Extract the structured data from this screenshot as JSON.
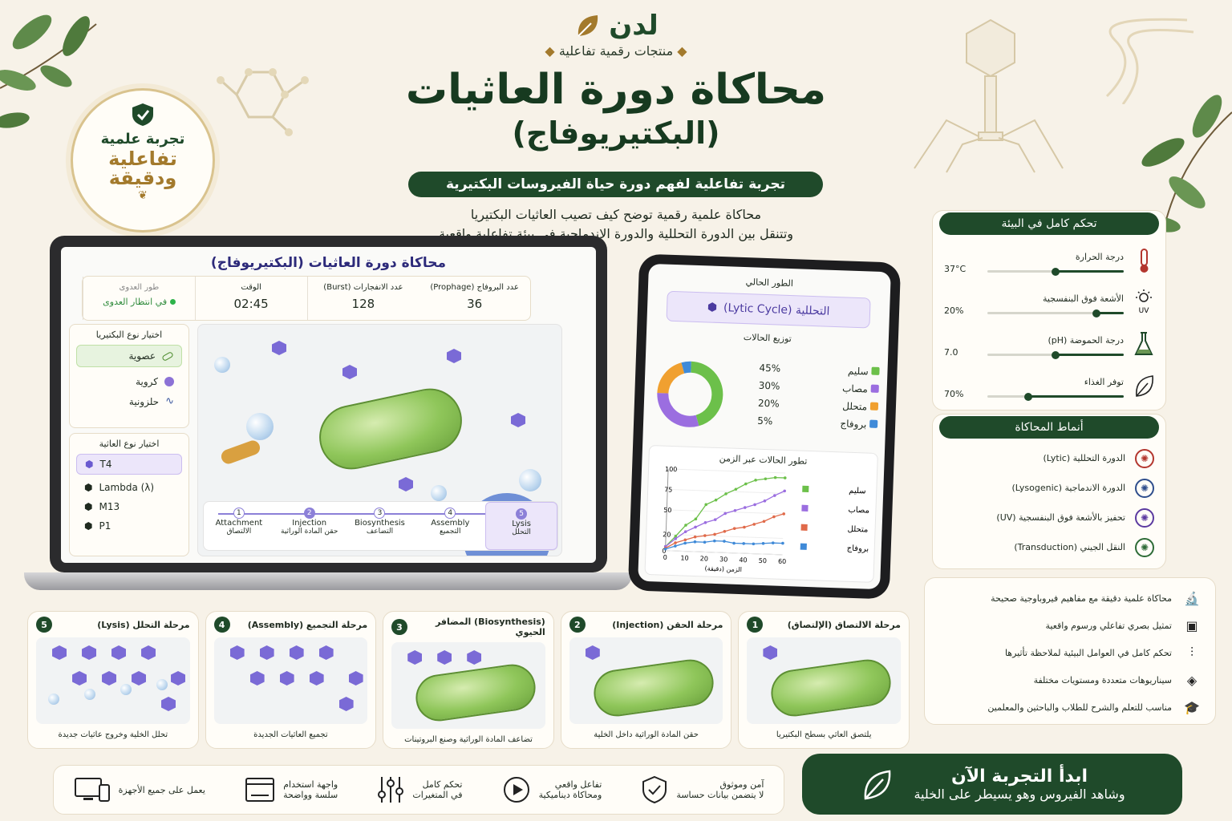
{
  "brand": {
    "name": "لدن",
    "tagline": "منتجات رقمية تفاعلية"
  },
  "hero": {
    "title_line1": "محاكاة دورة العاثيات",
    "title_line2": "(البكتيريوفاج)",
    "subtitle": "تجربة تفاعلية لفهم دورة حياة الفيروسات البكتيرية",
    "desc_line1": "محاكاة علمية رقمية توضح كيف تصيب العاثيات البكتيريا",
    "desc_line2": "وتتنقل بين الدورة التحللية والدورة الاندماجية في بيئة تفاعلية واقعية"
  },
  "badge": {
    "line1": "تجربة علمية",
    "line2": "تفاعلية",
    "line3": "ودقيقة"
  },
  "laptop": {
    "title": "محاكاة دورة العاثيات (البكتيريوفاج)",
    "stats": [
      {
        "label": "طور العدوى",
        "value": "في انتظار العدوى"
      },
      {
        "label": "الوقت",
        "value": "02:45"
      },
      {
        "label": "عدد الانفجارات (Burst)",
        "value": "128"
      },
      {
        "label": "عدد البروفاج (Prophage)",
        "value": "36"
      }
    ],
    "bacteria_title": "اختيار نوع البكتيريا",
    "bacteria": [
      "عصوية",
      "كروية",
      "حلزونية"
    ],
    "phage_title": "اختيار نوع العاثية",
    "phages": [
      "T4",
      "Lambda (λ)",
      "M13",
      "P1"
    ],
    "steps": [
      {
        "num": "1",
        "en": "Attachment",
        "ar": "الالتصاق"
      },
      {
        "num": "2",
        "en": "Injection",
        "ar": "حقن المادة الوراثية"
      },
      {
        "num": "3",
        "en": "Biosynthesis",
        "ar": "التضاعف"
      },
      {
        "num": "4",
        "en": "Assembly",
        "ar": "التجميع"
      },
      {
        "num": "5",
        "en": "Lysis",
        "ar": "التحلل"
      }
    ]
  },
  "tablet": {
    "phase_label": "الطور الحالي",
    "phase_value": "التحللية (Lytic Cycle)",
    "dist_title": "توزيع الحالات",
    "dist": [
      {
        "name": "سليم",
        "pct": "45%",
        "value": 45,
        "color": "#6cc04a"
      },
      {
        "name": "مصاب",
        "pct": "30%",
        "value": 30,
        "color": "#9b6ee0"
      },
      {
        "name": "متحلل",
        "pct": "20%",
        "value": 20,
        "color": "#f0a030"
      },
      {
        "name": "بروفاج",
        "pct": "5%",
        "value": 5,
        "color": "#3f8ad8"
      }
    ],
    "line_title": "تطور الحالات عبر الزمن",
    "xlabel": "الزمن (دقيقة)"
  },
  "chart_data": {
    "type": "line",
    "title": "تطور الحالات عبر الزمن",
    "xlabel": "الزمن (دقيقة)",
    "ylabel": "",
    "x": [
      0,
      5,
      10,
      15,
      20,
      25,
      30,
      35,
      40,
      45,
      50,
      55,
      60
    ],
    "x_ticks": [
      "0",
      "10",
      "20",
      "30",
      "40",
      "50",
      "60"
    ],
    "y_ticks": [
      "0",
      "20",
      "50",
      "75",
      "100"
    ],
    "ylim": [
      0,
      100
    ],
    "series": [
      {
        "name": "سليم",
        "color": "#6cc04a",
        "values": [
          5,
          18,
          32,
          40,
          58,
          64,
          72,
          78,
          85,
          90,
          92,
          94,
          94
        ]
      },
      {
        "name": "مصاب",
        "color": "#9b6ee0",
        "values": [
          5,
          15,
          24,
          30,
          36,
          40,
          48,
          52,
          56,
          60,
          65,
          72,
          78
        ]
      },
      {
        "name": "متحلل",
        "color": "#e06a4a",
        "values": [
          3,
          10,
          14,
          18,
          20,
          22,
          26,
          30,
          32,
          36,
          40,
          46,
          50
        ]
      },
      {
        "name": "بروفاج",
        "color": "#3f8ad8",
        "values": [
          2,
          6,
          10,
          12,
          12,
          14,
          14,
          12,
          12,
          12,
          13,
          14,
          14
        ]
      }
    ],
    "legend": "right"
  },
  "env": {
    "title": "تحكم كامل في البيئة",
    "controls": [
      {
        "label": "درجة الحرارة",
        "value": "37°C",
        "level": 0.5,
        "icon": "thermometer-icon"
      },
      {
        "label": "الأشعة فوق البنفسجية",
        "value": "20%",
        "level": 0.2,
        "icon": "uv-sun-icon"
      },
      {
        "label": "درجة الحموضة (pH)",
        "value": "7.0",
        "level": 0.5,
        "icon": "flask-icon"
      },
      {
        "label": "توفر الغذاء",
        "value": "70%",
        "level": 0.7,
        "icon": "leaf-icon"
      }
    ]
  },
  "modes": {
    "title": "أنماط المحاكاة",
    "items": [
      {
        "label": "الدورة التحللية (Lytic)",
        "color": "#b3362e"
      },
      {
        "label": "الدورة الاندماجية (Lysogenic)",
        "color": "#2e4d8c"
      },
      {
        "label": "تحفيز بالأشعة فوق البنفسجية (UV)",
        "color": "#5b3aa0"
      },
      {
        "label": "النقل الجيني (Transduction)",
        "color": "#2d6b36"
      }
    ]
  },
  "features": [
    "محاكاة علمية دقيقة مع مفاهيم فيروباوجية صحيحة",
    "تمثيل بصري تفاعلي ورسوم واقعية",
    "تحكم كامل في العوامل البيئية لملاحظة تأثيرها",
    "سيناريوهات متعددة ومستويات مختلفة",
    "مناسب للتعلم والشرح للطلاب والباحثين والمعلمين"
  ],
  "stages": [
    {
      "num": "1",
      "title": "مرحلة الالتصاق (الإلتصاق)",
      "caption": "يلتصق العاثي بسطح البكتيريا"
    },
    {
      "num": "2",
      "title": "مرحلة الحقن (Injection)",
      "caption": "حقن المادة الوراثية داخل الخلية"
    },
    {
      "num": "3",
      "title": "(Biosynthesis) المضافر الحيوي",
      "caption": "تضاعف المادة الوراثية وصنع البروتينات"
    },
    {
      "num": "4",
      "title": "مرحلة التجميع (Assembly)",
      "caption": "تجميع العاثيات الجديدة"
    },
    {
      "num": "5",
      "title": "مرحلة التحلل (Lysis)",
      "caption": "تحلل الخلية وخروج عاثيات جديدة"
    }
  ],
  "bottom": [
    {
      "title": "يعمل على جميع الأجهزة",
      "sub": ""
    },
    {
      "title": "واجهة استخدام",
      "sub": "سلسة وواضحة"
    },
    {
      "title": "تحكم كامل",
      "sub": "في المتغيرات"
    },
    {
      "title": "تفاعل واقعي",
      "sub": "ومحاكاة ديناميكية"
    },
    {
      "title": "آمن وموثوق",
      "sub": "لا يتضمن بيانات حساسة"
    }
  ],
  "cta": {
    "title": "ابدأ التجربة الآن",
    "sub": "وشاهد الفيروس وهو يسيطر على الخلية"
  }
}
